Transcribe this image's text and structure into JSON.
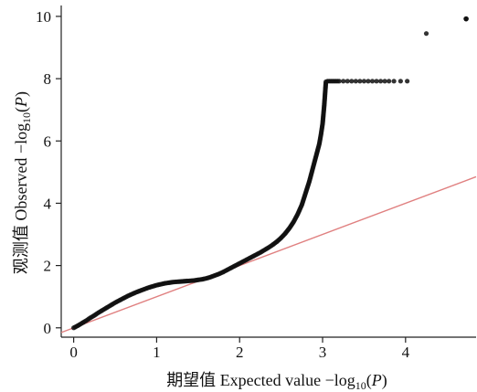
{
  "chart_data": {
    "type": "scatter",
    "xlabel": "期望值 Expected value −log₁₀(P)",
    "ylabel": "观测值 Observed −log₁₀(P)",
    "xlabel_parts": {
      "cn": "期望值 ",
      "en": "Expected value −log",
      "sub": "10",
      "open": "(",
      "var": "P",
      "close": ")"
    },
    "ylabel_parts": {
      "cn": "观测值 ",
      "en": "Observed −log",
      "sub": "10",
      "open": "(",
      "var": "P",
      "close": ")"
    },
    "xlim": [
      -0.15,
      4.85
    ],
    "ylim": [
      -0.3,
      10.35
    ],
    "x_ticks": [
      0,
      1,
      2,
      3,
      4
    ],
    "y_ticks": [
      0,
      2,
      4,
      6,
      8,
      10
    ],
    "grid": false,
    "colors": {
      "points": "#111111",
      "reference_line": "#e08080"
    },
    "reference_line": {
      "x": [
        -0.15,
        4.85
      ],
      "y": [
        -0.15,
        4.85
      ]
    },
    "series": [
      {
        "x": [
          0.0,
          0.05,
          0.1,
          0.15,
          0.2,
          0.25,
          0.3,
          0.35,
          0.4,
          0.45,
          0.5,
          0.55,
          0.6,
          0.65,
          0.7,
          0.75,
          0.8,
          0.85,
          0.9,
          0.95,
          1.0,
          1.05,
          1.1,
          1.15,
          1.2,
          1.25,
          1.3,
          1.35,
          1.4,
          1.45,
          1.5,
          1.55,
          1.6,
          1.65,
          1.7,
          1.75,
          1.8,
          1.85,
          1.9,
          1.95,
          2.0,
          2.05,
          2.1,
          2.15,
          2.2,
          2.25,
          2.3,
          2.35,
          2.4,
          2.45,
          2.5,
          2.55,
          2.6,
          2.65,
          2.7,
          2.75,
          2.78,
          2.81,
          2.84,
          2.87,
          2.9,
          2.92,
          2.94,
          2.96,
          2.98,
          3.0,
          3.02,
          3.04,
          3.06,
          3.08,
          3.1,
          3.12,
          3.14,
          3.16,
          3.18,
          3.2,
          3.25,
          3.3,
          3.35,
          3.4,
          3.45,
          3.5,
          3.55,
          3.6,
          3.65,
          3.7,
          3.75,
          3.8,
          3.86,
          3.94,
          4.02,
          4.25,
          4.73
        ],
        "y": [
          0.0,
          0.07,
          0.15,
          0.23,
          0.32,
          0.4,
          0.49,
          0.57,
          0.65,
          0.73,
          0.81,
          0.88,
          0.95,
          1.02,
          1.08,
          1.14,
          1.19,
          1.24,
          1.29,
          1.33,
          1.37,
          1.4,
          1.43,
          1.45,
          1.47,
          1.48,
          1.49,
          1.5,
          1.51,
          1.52,
          1.54,
          1.56,
          1.59,
          1.63,
          1.68,
          1.73,
          1.79,
          1.86,
          1.93,
          2.0,
          2.07,
          2.14,
          2.21,
          2.28,
          2.35,
          2.42,
          2.5,
          2.58,
          2.67,
          2.77,
          2.89,
          3.03,
          3.2,
          3.4,
          3.65,
          3.95,
          4.2,
          4.45,
          4.7,
          5.0,
          5.3,
          5.5,
          5.7,
          5.9,
          6.2,
          6.55,
          7.15,
          7.9,
          7.92,
          7.92,
          7.92,
          7.92,
          7.92,
          7.92,
          7.92,
          7.92,
          7.92,
          7.92,
          7.92,
          7.92,
          7.92,
          7.92,
          7.92,
          7.92,
          7.92,
          7.92,
          7.92,
          7.92,
          7.92,
          7.92,
          7.92,
          9.45,
          9.92
        ]
      }
    ]
  }
}
